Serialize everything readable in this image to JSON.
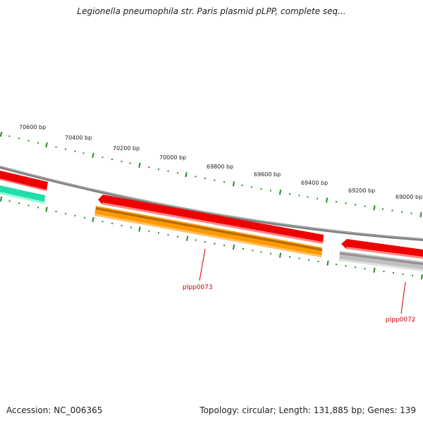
{
  "title": "Legionella pneumophila str. Paris plasmid pLPP, complete seq...",
  "footer": {
    "accession": "Accession: NC_006365",
    "summary": "Topology: circular; Length: 131,885 bp; Genes: 139"
  },
  "scale": {
    "ticks": [
      "70600 bp",
      "70400 bp",
      "70200 bp",
      "70000 bp",
      "69800 bp",
      "69600 bp",
      "69400 bp",
      "69200 bp",
      "69000 bp"
    ]
  },
  "genes": {
    "plpp0073": "plpp0073",
    "plpp0072": "plpp0072"
  },
  "colors": {
    "backbone": "#808080",
    "forward_gene": "#ee0000",
    "orange_gene": "#ff9900",
    "teal_gene": "#22ddaa",
    "gray_gene": "#c0c0c0",
    "tick": "#228b22",
    "gene_label": "#cc0000"
  }
}
